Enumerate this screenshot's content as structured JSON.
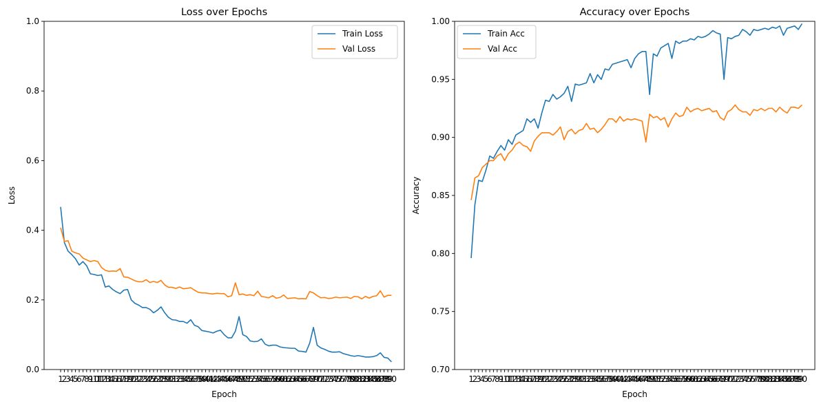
{
  "chart_data": [
    {
      "type": "line",
      "title": "Loss over Epochs",
      "xlabel": "Epoch",
      "ylabel": "Loss",
      "xlim": [
        1,
        90
      ],
      "ylim": [
        0,
        1.0
      ],
      "yticks": [
        0.0,
        0.2,
        0.4,
        0.6,
        0.8,
        1.0
      ],
      "ytick_labels": [
        "0.0",
        "0.2",
        "0.4",
        "0.6",
        "0.8",
        "1.0"
      ],
      "xticks": [
        1,
        2,
        3,
        4,
        5,
        6,
        7,
        8,
        9,
        10,
        11,
        12,
        13,
        14,
        15,
        16,
        17,
        18,
        19,
        20,
        21,
        22,
        23,
        24,
        25,
        26,
        27,
        28,
        29,
        30,
        31,
        32,
        33,
        34,
        35,
        36,
        37,
        38,
        39,
        40,
        41,
        42,
        43,
        44,
        45,
        46,
        47,
        48,
        49,
        50,
        51,
        52,
        53,
        54,
        55,
        56,
        57,
        58,
        59,
        60,
        61,
        62,
        63,
        64,
        65,
        66,
        67,
        68,
        69,
        70,
        71,
        72,
        73,
        74,
        75,
        76,
        77,
        78,
        79,
        80,
        81,
        82,
        83,
        84,
        85,
        86,
        87,
        88,
        89,
        90
      ],
      "legend": "top-right",
      "grid": false,
      "series": [
        {
          "name": "Train Loss",
          "color": "#1f77b4",
          "values": [
            0.467,
            0.365,
            0.34,
            0.33,
            0.318,
            0.3,
            0.31,
            0.298,
            0.275,
            0.273,
            0.27,
            0.272,
            0.237,
            0.24,
            0.23,
            0.223,
            0.218,
            0.228,
            0.23,
            0.2,
            0.19,
            0.185,
            0.178,
            0.178,
            0.173,
            0.163,
            0.17,
            0.18,
            0.163,
            0.15,
            0.143,
            0.142,
            0.138,
            0.138,
            0.133,
            0.143,
            0.127,
            0.123,
            0.112,
            0.11,
            0.108,
            0.105,
            0.11,
            0.113,
            0.1,
            0.091,
            0.091,
            0.11,
            0.152,
            0.1,
            0.095,
            0.082,
            0.08,
            0.081,
            0.088,
            0.073,
            0.068,
            0.07,
            0.07,
            0.065,
            0.063,
            0.062,
            0.061,
            0.061,
            0.053,
            0.052,
            0.05,
            0.076,
            0.121,
            0.07,
            0.062,
            0.058,
            0.053,
            0.05,
            0.05,
            0.051,
            0.046,
            0.043,
            0.04,
            0.038,
            0.04,
            0.038,
            0.036,
            0.036,
            0.037,
            0.04,
            0.048,
            0.035,
            0.033,
            0.022
          ]
        },
        {
          "name": "Val Loss",
          "color": "#ff7f0e",
          "values": [
            0.407,
            0.368,
            0.37,
            0.34,
            0.335,
            0.332,
            0.32,
            0.315,
            0.31,
            0.313,
            0.31,
            0.293,
            0.285,
            0.282,
            0.283,
            0.282,
            0.29,
            0.266,
            0.265,
            0.26,
            0.255,
            0.252,
            0.252,
            0.258,
            0.25,
            0.253,
            0.25,
            0.256,
            0.243,
            0.236,
            0.236,
            0.233,
            0.237,
            0.232,
            0.233,
            0.235,
            0.228,
            0.222,
            0.22,
            0.22,
            0.218,
            0.217,
            0.219,
            0.218,
            0.218,
            0.209,
            0.212,
            0.249,
            0.215,
            0.217,
            0.213,
            0.215,
            0.212,
            0.225,
            0.21,
            0.208,
            0.206,
            0.212,
            0.205,
            0.207,
            0.214,
            0.204,
            0.205,
            0.206,
            0.203,
            0.204,
            0.203,
            0.224,
            0.22,
            0.212,
            0.206,
            0.207,
            0.204,
            0.205,
            0.208,
            0.206,
            0.207,
            0.208,
            0.204,
            0.21,
            0.209,
            0.203,
            0.21,
            0.205,
            0.21,
            0.212,
            0.226,
            0.208,
            0.213,
            0.213
          ]
        }
      ]
    },
    {
      "type": "line",
      "title": "Accuracy over Epochs",
      "xlabel": "Epoch",
      "ylabel": "Accuracy",
      "xlim": [
        1,
        90
      ],
      "ylim": [
        0.7,
        1.0
      ],
      "yticks": [
        0.7,
        0.75,
        0.8,
        0.85,
        0.9,
        0.95,
        1.0
      ],
      "ytick_labels": [
        "0.70",
        "0.75",
        "0.80",
        "0.85",
        "0.90",
        "0.95",
        "1.00"
      ],
      "xticks": [
        1,
        2,
        3,
        4,
        5,
        6,
        7,
        8,
        9,
        10,
        11,
        12,
        13,
        14,
        15,
        16,
        17,
        18,
        19,
        20,
        21,
        22,
        23,
        24,
        25,
        26,
        27,
        28,
        29,
        30,
        31,
        32,
        33,
        34,
        35,
        36,
        37,
        38,
        39,
        40,
        41,
        42,
        43,
        44,
        45,
        46,
        47,
        48,
        49,
        50,
        51,
        52,
        53,
        54,
        55,
        56,
        57,
        58,
        59,
        60,
        61,
        62,
        63,
        64,
        65,
        66,
        67,
        68,
        69,
        70,
        71,
        72,
        73,
        74,
        75,
        76,
        77,
        78,
        79,
        80,
        81,
        82,
        83,
        84,
        85,
        86,
        87,
        88,
        89,
        90
      ],
      "legend": "top-left",
      "grid": false,
      "series": [
        {
          "name": "Train Acc",
          "color": "#1f77b4",
          "values": [
            0.796,
            0.842,
            0.863,
            0.862,
            0.872,
            0.884,
            0.882,
            0.888,
            0.893,
            0.889,
            0.898,
            0.894,
            0.902,
            0.904,
            0.906,
            0.916,
            0.913,
            0.916,
            0.908,
            0.921,
            0.932,
            0.931,
            0.937,
            0.933,
            0.935,
            0.938,
            0.944,
            0.931,
            0.946,
            0.945,
            0.946,
            0.947,
            0.955,
            0.947,
            0.954,
            0.95,
            0.959,
            0.958,
            0.963,
            0.964,
            0.965,
            0.966,
            0.967,
            0.96,
            0.968,
            0.972,
            0.974,
            0.974,
            0.937,
            0.972,
            0.97,
            0.977,
            0.979,
            0.981,
            0.968,
            0.983,
            0.981,
            0.983,
            0.983,
            0.985,
            0.984,
            0.987,
            0.986,
            0.987,
            0.989,
            0.992,
            0.99,
            0.989,
            0.95,
            0.986,
            0.985,
            0.987,
            0.988,
            0.993,
            0.991,
            0.988,
            0.993,
            0.992,
            0.993,
            0.994,
            0.993,
            0.995,
            0.994,
            0.996,
            0.988,
            0.994,
            0.995,
            0.996,
            0.993,
            0.998
          ]
        },
        {
          "name": "Val Acc",
          "color": "#ff7f0e",
          "values": [
            0.846,
            0.865,
            0.867,
            0.874,
            0.877,
            0.88,
            0.88,
            0.884,
            0.886,
            0.88,
            0.886,
            0.889,
            0.894,
            0.896,
            0.893,
            0.892,
            0.888,
            0.897,
            0.901,
            0.904,
            0.904,
            0.904,
            0.902,
            0.905,
            0.909,
            0.898,
            0.905,
            0.907,
            0.903,
            0.906,
            0.907,
            0.912,
            0.907,
            0.908,
            0.904,
            0.907,
            0.911,
            0.916,
            0.916,
            0.913,
            0.918,
            0.914,
            0.916,
            0.915,
            0.916,
            0.915,
            0.914,
            0.896,
            0.92,
            0.917,
            0.918,
            0.915,
            0.917,
            0.909,
            0.916,
            0.921,
            0.918,
            0.919,
            0.926,
            0.922,
            0.924,
            0.925,
            0.923,
            0.924,
            0.925,
            0.922,
            0.923,
            0.917,
            0.915,
            0.922,
            0.924,
            0.928,
            0.924,
            0.922,
            0.922,
            0.919,
            0.924,
            0.923,
            0.925,
            0.923,
            0.925,
            0.925,
            0.922,
            0.926,
            0.923,
            0.921,
            0.926,
            0.926,
            0.925,
            0.928
          ]
        }
      ]
    }
  ]
}
